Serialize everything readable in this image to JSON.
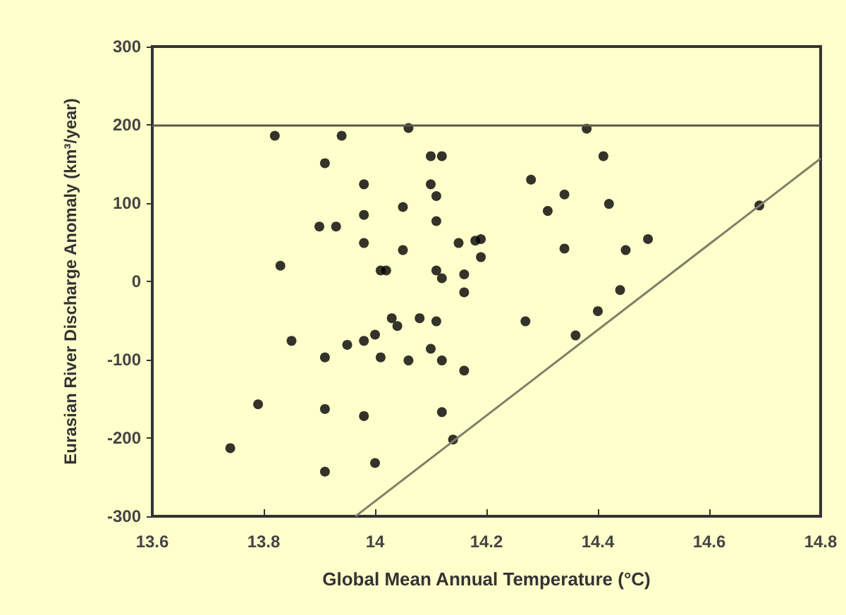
{
  "chart_data": {
    "type": "scatter",
    "xlabel": "Global Mean Annual Temperature (°C)",
    "ylabel": "Eurasian River Discharge Anomaly (km³/year)",
    "xlim": [
      13.6,
      14.8
    ],
    "xticks": [
      13.6,
      13.8,
      14,
      14.2,
      14.4,
      14.6,
      14.8
    ],
    "ylim": [
      -300,
      300
    ],
    "yticks": [
      -300,
      -200,
      -100,
      0,
      100,
      200,
      300
    ],
    "grid": false,
    "marker": "circle",
    "ref_lines": [
      {
        "axis": "y",
        "value": 200,
        "color": "#5a5a4a"
      }
    ],
    "series": [
      {
        "color": "#000000",
        "x": [
          13.82,
          13.83,
          13.91,
          13.9,
          13.93,
          13.94,
          13.98,
          13.98,
          13.98,
          14.06,
          14.05,
          14.05,
          14.01,
          14.02,
          14.1,
          14.12,
          14.1,
          14.11,
          14.11,
          14.11,
          14.12,
          14.15,
          14.16,
          14.16,
          14.18,
          14.19,
          14.19,
          14.28,
          14.34,
          14.31,
          14.42,
          14.41,
          14.38,
          14.34,
          14.45,
          14.49,
          14.69,
          14.44,
          14.4,
          14.36,
          14.27,
          14.11,
          14.1,
          14.12,
          14.16,
          14.12,
          14.14,
          13.74,
          13.79,
          13.85,
          13.91,
          13.91,
          13.91,
          13.95,
          13.98,
          14,
          14.01,
          13.98,
          14,
          14.03,
          14.04,
          14.08,
          14.06
        ],
        "values": [
          186,
          20,
          151,
          70,
          70,
          186,
          124,
          85,
          49,
          196,
          95,
          40,
          14,
          14,
          160,
          160,
          124,
          109,
          77,
          14,
          4,
          49,
          9,
          -14,
          52,
          54,
          31,
          130,
          111,
          90,
          99,
          160,
          195,
          42,
          40,
          54,
          97,
          -11,
          -38,
          -69,
          -51,
          -51,
          -86,
          -101,
          -114,
          -167,
          -202,
          -213,
          -157,
          -76,
          -97,
          -163,
          -243,
          -81,
          -76,
          -68,
          -97,
          -172,
          -232,
          -47,
          -57,
          -47,
          -101
        ]
      },
      {
        "type": "line",
        "color": "#7f7f6a",
        "marker": "none",
        "x": [
          13.965,
          14.8
        ],
        "values": [
          -300,
          157
        ]
      }
    ]
  }
}
